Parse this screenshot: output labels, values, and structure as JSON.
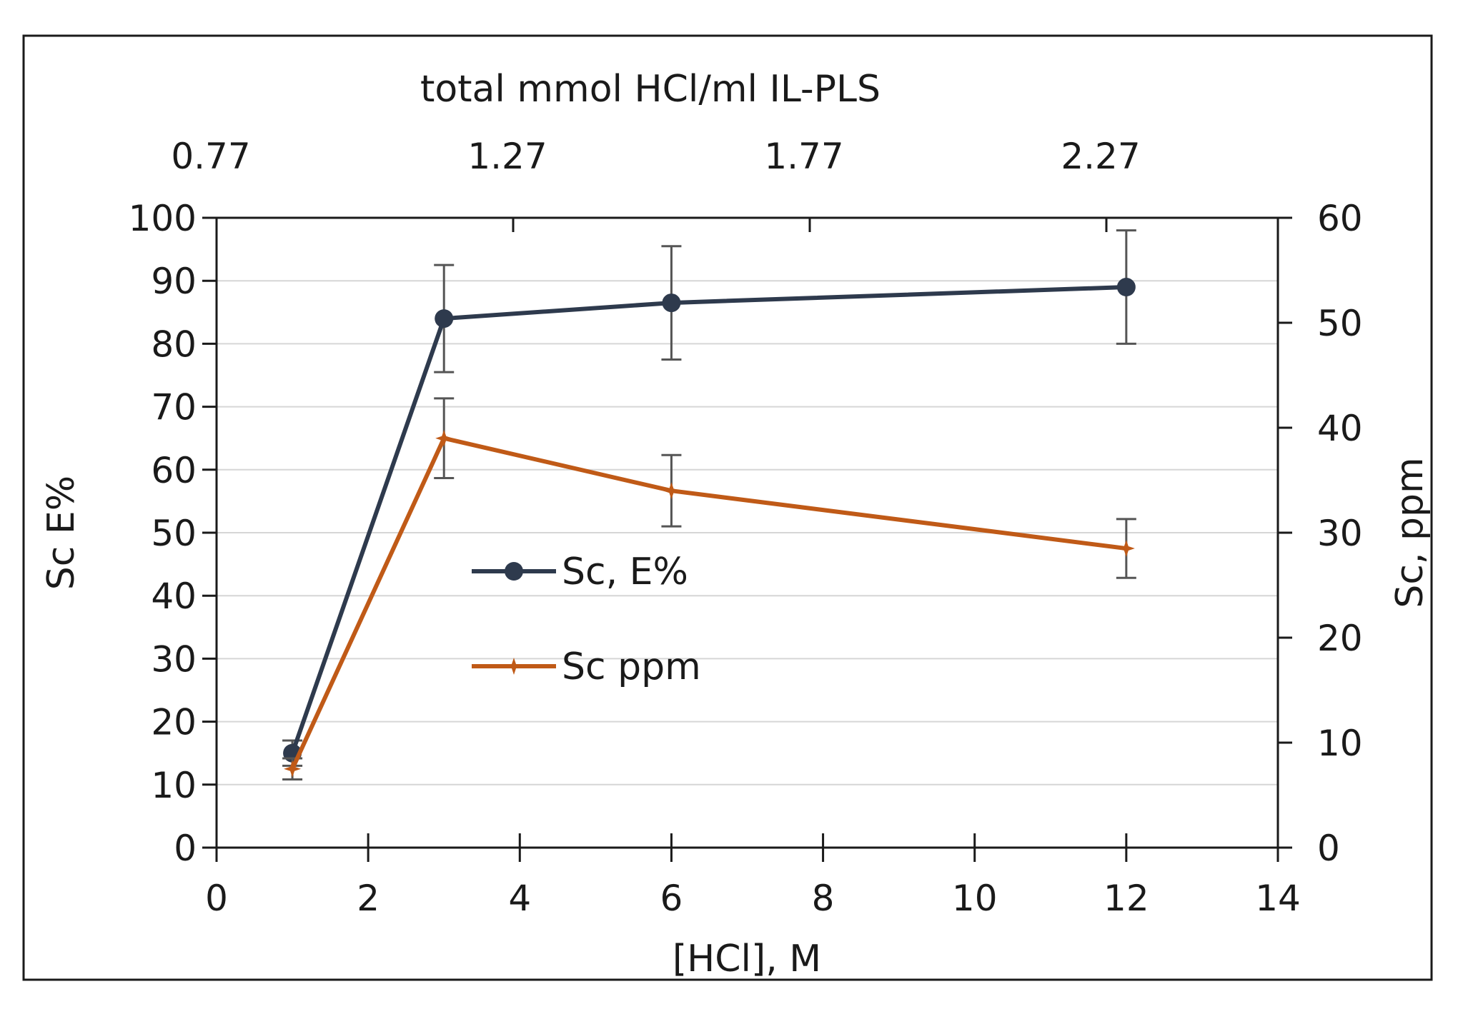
{
  "chart_data": {
    "type": "line",
    "x_axis_bottom": {
      "label": "[HCl], M",
      "range": [
        0,
        14
      ],
      "ticks": [
        "0",
        "2",
        "4",
        "6",
        "8",
        "10",
        "12",
        "14"
      ]
    },
    "x_axis_top": {
      "label": "total mmol  HCl/ml IL-PLS",
      "ticks": [
        "0.77",
        "1.27",
        "1.77",
        "2.27"
      ]
    },
    "y_axis_left": {
      "label": "Sc E%",
      "range": [
        0,
        100
      ],
      "ticks": [
        "0",
        "10",
        "20",
        "30",
        "40",
        "50",
        "60",
        "70",
        "80",
        "90",
        "100"
      ]
    },
    "y_axis_right": {
      "label": "Sc, ppm",
      "range": [
        0,
        60
      ],
      "ticks": [
        "0",
        "10",
        "20",
        "30",
        "40",
        "50",
        "60"
      ]
    },
    "grid": true,
    "legend_position": "center-left",
    "series": [
      {
        "name": "Sc, E%",
        "axis": "left",
        "color": "#2e3a4d",
        "marker": "circle",
        "x": [
          1,
          3,
          6,
          12
        ],
        "values": [
          15,
          84,
          86.5,
          89
        ],
        "error": [
          2,
          8.5,
          9,
          9
        ]
      },
      {
        "name": "Sc ppm",
        "axis": "right",
        "color": "#c05a17",
        "marker": "star",
        "x": [
          1,
          3,
          6,
          12
        ],
        "values": [
          7.5,
          39,
          34,
          28.5
        ],
        "error": [
          1,
          3.8,
          3.4,
          2.8
        ]
      }
    ]
  }
}
